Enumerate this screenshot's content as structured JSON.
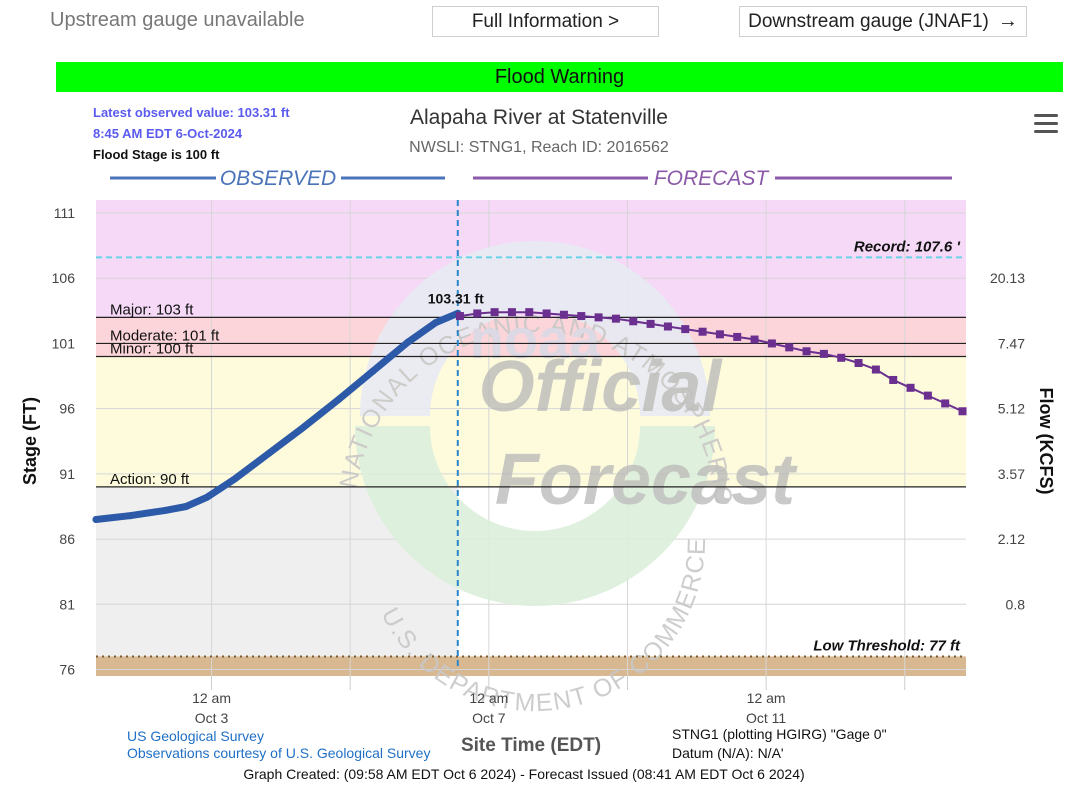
{
  "topbar": {
    "upstream": "Upstream gauge unavailable",
    "full_info": "Full Information >",
    "downstream": "Downstream gauge (JNAF1)",
    "arrow_icon": "arrow-right-icon"
  },
  "warning": {
    "label": "Flood Warning",
    "color": "#00ff00"
  },
  "colors": {
    "observed": "#2c5aa8",
    "forecast": "#6a2f8f",
    "major_band": "#f5d9f7",
    "moderate_band": "#fbd5d9",
    "minor_band": "#fdfbdc",
    "below_band": "#efefef",
    "low_band": "#d8b891",
    "record_line": "#6ad3e8"
  },
  "chart_data": {
    "type": "line",
    "title": "Alapaha River at Statenville",
    "subtitle": "NWSLI: STNG1, Reach ID: 2016562",
    "latest_observed": "Latest observed value: 103.31 ft",
    "latest_time": "8:45 AM EDT 6-Oct-2024",
    "flood_stage_note": "Flood Stage is 100 ft",
    "observed_label": "OBSERVED",
    "forecast_label": "FORECAST",
    "ylabel": "Stage (FT)",
    "y2label": "Flow (KCFS)",
    "xlabel": "Site Time (EDT)",
    "ylim": [
      75.5,
      112
    ],
    "xlim": [
      0,
      12.55
    ],
    "y_ticks": [
      76,
      81,
      86,
      91,
      96,
      101,
      106,
      111
    ],
    "y2_ticks": [
      {
        "stage": 106,
        "label": "20.13"
      },
      {
        "stage": 101,
        "label": "7.47"
      },
      {
        "stage": 96,
        "label": "5.12"
      },
      {
        "stage": 91,
        "label": "3.57"
      },
      {
        "stage": 86,
        "label": "2.12"
      },
      {
        "stage": 81,
        "label": "0.8"
      }
    ],
    "x_ticks": [
      {
        "x": 1.6667,
        "label1": "12 am",
        "label2": "Oct 3"
      },
      {
        "x": 5.6667,
        "label1": "12 am",
        "label2": "Oct 7"
      },
      {
        "x": 9.6667,
        "label1": "12 am",
        "label2": "Oct 11"
      }
    ],
    "x_minor": [
      3.6667,
      7.6667,
      11.6667
    ],
    "thresholds": [
      {
        "name": "Major",
        "label": "Major: 103 ft",
        "value": 103
      },
      {
        "name": "Moderate",
        "label": "Moderate: 101 ft",
        "value": 101
      },
      {
        "name": "Minor",
        "label": "Minor: 100 ft",
        "value": 100
      },
      {
        "name": "Action",
        "label": "Action: 90 ft",
        "value": 90
      }
    ],
    "record": {
      "label": "Record: 107.6 '",
      "value": 107.6
    },
    "low_threshold": {
      "label": "Low Threshold: 77 ft",
      "value": 77
    },
    "now_x": 5.2187,
    "latest_label": "103.31 ft",
    "observed": [
      [
        0.0,
        87.5
      ],
      [
        0.5,
        87.8
      ],
      [
        1.0,
        88.2
      ],
      [
        1.3,
        88.5
      ],
      [
        1.6,
        89.2
      ],
      [
        2.0,
        90.6
      ],
      [
        2.5,
        92.6
      ],
      [
        3.0,
        94.6
      ],
      [
        3.5,
        96.7
      ],
      [
        4.0,
        98.9
      ],
      [
        4.5,
        101.1
      ],
      [
        4.9,
        102.6
      ],
      [
        5.2187,
        103.31
      ]
    ],
    "forecast": [
      [
        5.25,
        103.1
      ],
      [
        5.5,
        103.3
      ],
      [
        5.75,
        103.4
      ],
      [
        6.0,
        103.4
      ],
      [
        6.25,
        103.4
      ],
      [
        6.5,
        103.3
      ],
      [
        6.75,
        103.2
      ],
      [
        7.0,
        103.1
      ],
      [
        7.25,
        103.0
      ],
      [
        7.5,
        102.9
      ],
      [
        7.75,
        102.7
      ],
      [
        8.0,
        102.5
      ],
      [
        8.25,
        102.3
      ],
      [
        8.5,
        102.1
      ],
      [
        8.75,
        101.9
      ],
      [
        9.0,
        101.7
      ],
      [
        9.25,
        101.5
      ],
      [
        9.5,
        101.3
      ],
      [
        9.75,
        101.0
      ],
      [
        10.0,
        100.7
      ],
      [
        10.25,
        100.4
      ],
      [
        10.5,
        100.2
      ],
      [
        10.75,
        99.9
      ],
      [
        11.0,
        99.5
      ],
      [
        11.25,
        99.0
      ],
      [
        11.5,
        98.2
      ],
      [
        11.75,
        97.6
      ],
      [
        12.0,
        97.0
      ],
      [
        12.25,
        96.4
      ],
      [
        12.5,
        95.8
      ]
    ],
    "credits": {
      "usgs": "US Geological Survey",
      "usgs_obs": "Observations courtesy of U.S. Geological Survey",
      "plotting": "STNG1 (plotting HGIRG) \"Gage 0\"",
      "datum": "Datum (N/A): N/A'",
      "created": "Graph Created: (09:58 AM EDT Oct 6 2024) - Forecast Issued (08:41 AM EDT Oct 6 2024)"
    },
    "watermark": {
      "ring_top": "NATIONAL OCEANIC AND ATMOSPHERIC ADMINISTRATION",
      "ring_bottom": "U.S. DEPARTMENT OF COMMERCE",
      "center": "noaa",
      "official": "Official",
      "forecast": "Forecast"
    }
  }
}
